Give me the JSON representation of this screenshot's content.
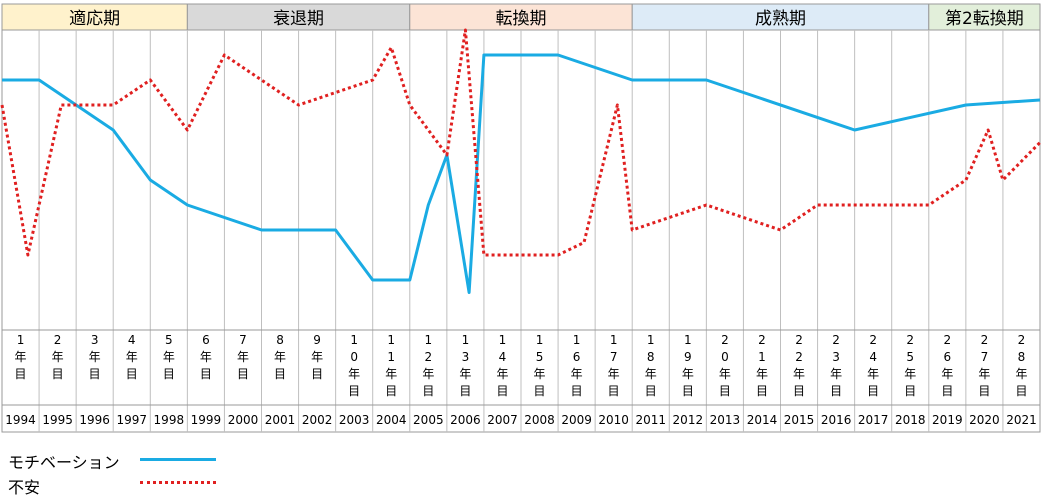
{
  "chart_data": {
    "type": "line",
    "phases": [
      {
        "label": "適応期",
        "color": "#FFF2CC",
        "from": 0,
        "to": 5
      },
      {
        "label": "衰退期",
        "color": "#D9D9D9",
        "from": 5,
        "to": 11
      },
      {
        "label": "転換期",
        "color": "#FCE4D6",
        "from": 11,
        "to": 17
      },
      {
        "label": "成熟期",
        "color": "#DDEBF7",
        "from": 17,
        "to": 25
      },
      {
        "label": "第2転換期",
        "color": "#E2EFDA",
        "from": 25,
        "to": 28
      }
    ],
    "year_labels": [
      "1\n年\n目",
      "2\n年\n目",
      "3\n年\n目",
      "4\n年\n目",
      "5\n年\n目",
      "6\n年\n目",
      "7\n年\n目",
      "8\n年\n目",
      "9\n年\n目",
      "1\n0\n年\n目",
      "1\n1\n年\n目",
      "1\n2\n年\n目",
      "1\n3\n年\n目",
      "1\n4\n年\n目",
      "1\n5\n年\n目",
      "1\n6\n年\n目",
      "1\n7\n年\n目",
      "1\n8\n年\n目",
      "1\n9\n年\n目",
      "2\n0\n年\n目",
      "2\n1\n年\n目",
      "2\n2\n年\n目",
      "2\n3\n年\n目",
      "2\n4\n年\n目",
      "2\n5\n年\n目",
      "2\n6\n年\n目",
      "2\n7\n年\n目",
      "2\n8\n年\n目"
    ],
    "years": [
      "1994",
      "1995",
      "1996",
      "1997",
      "1998",
      "1999",
      "2000",
      "2001",
      "2002",
      "2003",
      "2004",
      "2005",
      "2006",
      "2007",
      "2008",
      "2009",
      "2010",
      "2011",
      "2012",
      "2013",
      "2014",
      "2015",
      "2016",
      "2017",
      "2018",
      "2019",
      "2020",
      "2021"
    ],
    "ylim": [
      0,
      12
    ],
    "series": [
      {
        "name": "モチベーション",
        "color": "#1AABE3",
        "style": "solid",
        "points": [
          [
            0,
            10
          ],
          [
            1,
            10
          ],
          [
            3,
            8
          ],
          [
            4,
            6
          ],
          [
            5,
            5
          ],
          [
            7,
            4
          ],
          [
            9,
            4
          ],
          [
            10,
            2
          ],
          [
            11,
            2
          ],
          [
            11.5,
            5
          ],
          [
            12,
            7
          ],
          [
            12.6,
            1.5
          ],
          [
            13,
            11
          ],
          [
            15,
            11
          ],
          [
            17,
            10
          ],
          [
            19,
            10
          ],
          [
            23,
            8
          ],
          [
            26,
            9
          ],
          [
            28,
            9.2
          ]
        ]
      },
      {
        "name": "不安",
        "color": "#E02020",
        "style": "dotted",
        "points": [
          [
            0,
            9
          ],
          [
            0.7,
            3
          ],
          [
            1.6,
            9
          ],
          [
            3,
            9
          ],
          [
            4,
            10
          ],
          [
            5,
            8
          ],
          [
            6,
            11
          ],
          [
            8,
            9
          ],
          [
            10,
            10
          ],
          [
            10.5,
            11.3
          ],
          [
            11,
            9
          ],
          [
            12,
            7
          ],
          [
            12.5,
            12
          ],
          [
            13,
            3
          ],
          [
            15,
            3
          ],
          [
            15.7,
            3.5
          ],
          [
            16.6,
            9
          ],
          [
            17,
            4
          ],
          [
            19,
            5
          ],
          [
            21,
            4
          ],
          [
            22,
            5
          ],
          [
            25,
            5
          ],
          [
            26,
            6
          ],
          [
            26.6,
            8
          ],
          [
            27,
            6
          ],
          [
            28,
            7.5
          ]
        ]
      }
    ]
  }
}
